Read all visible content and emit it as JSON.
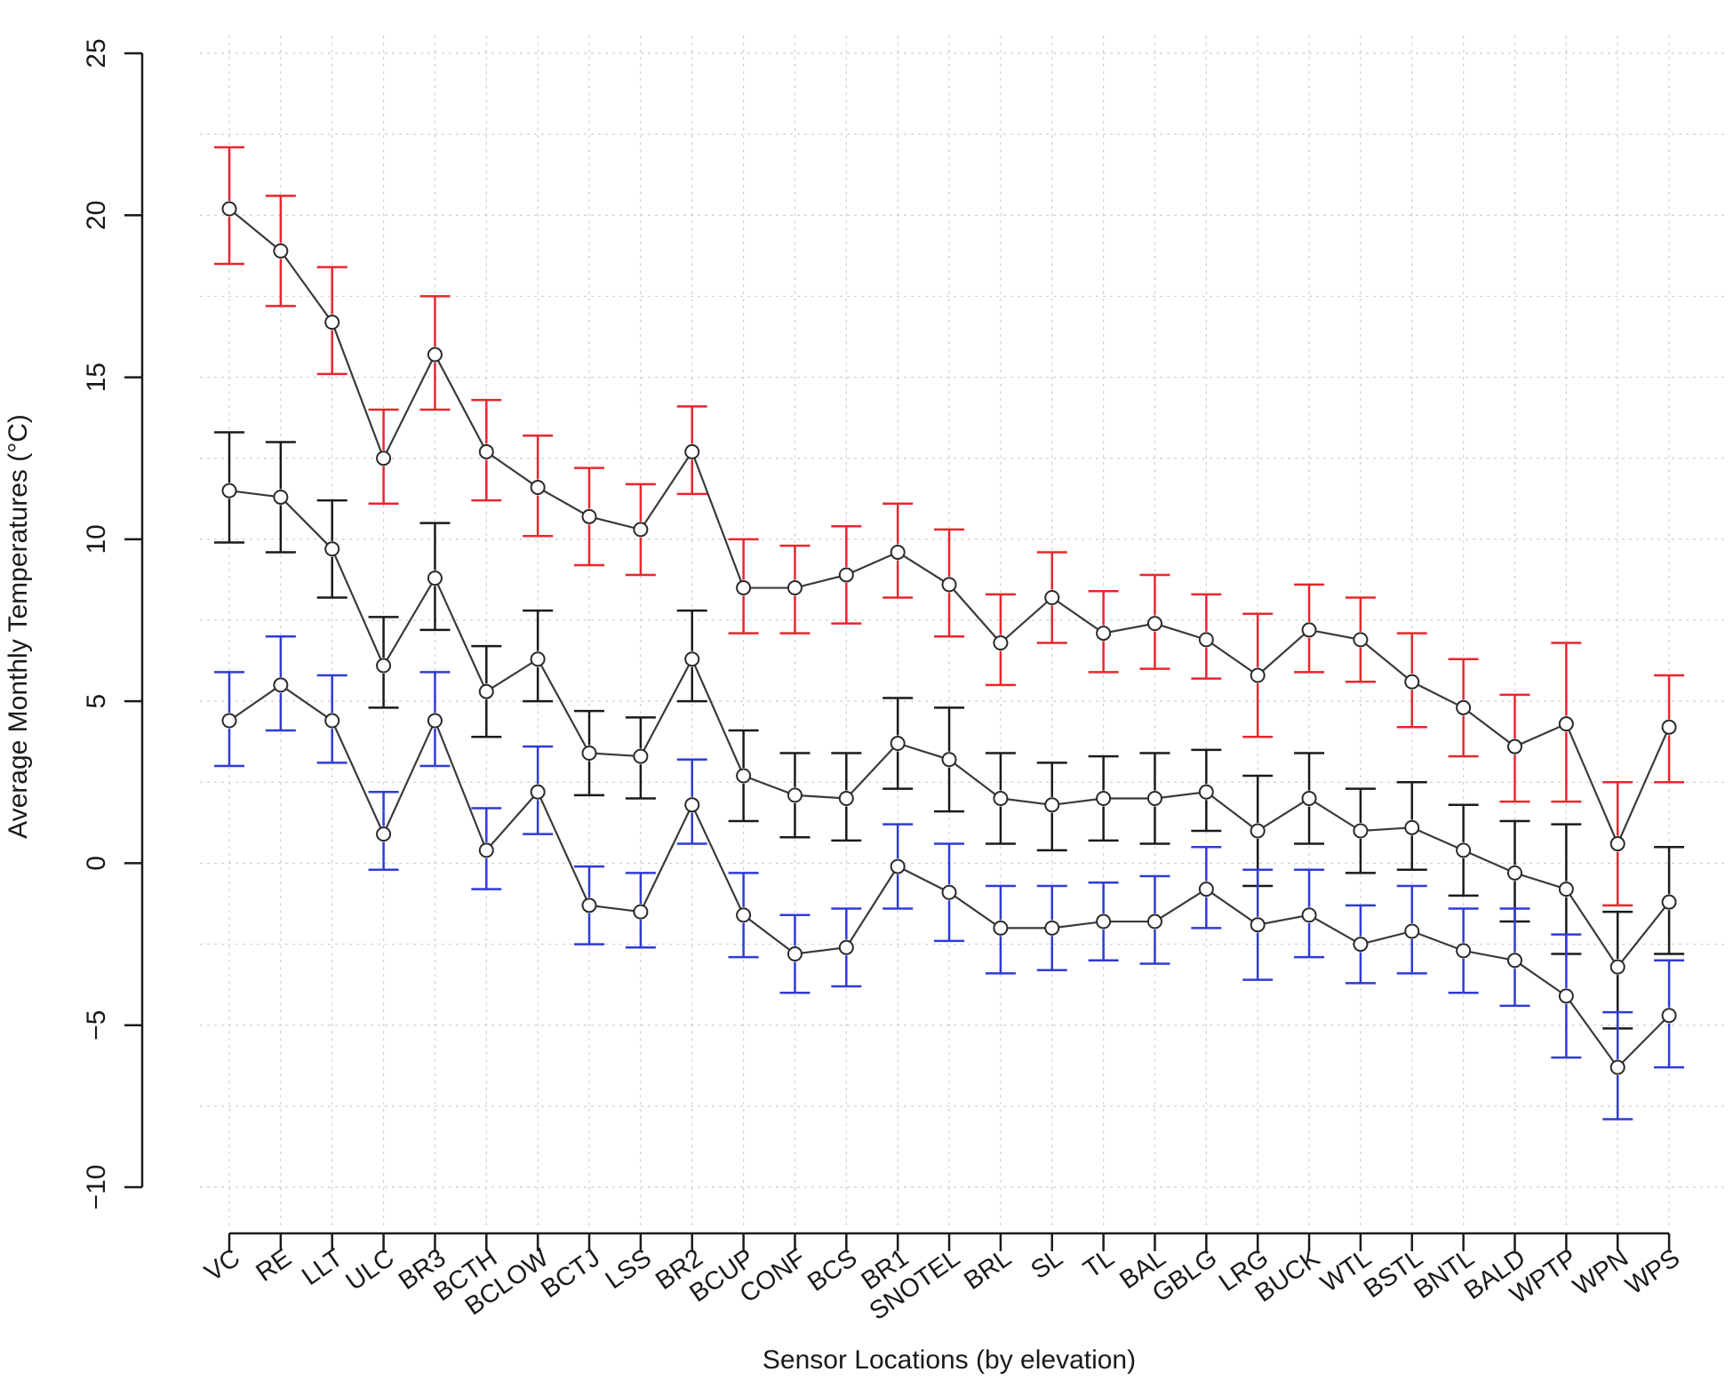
{
  "chart_data": {
    "type": "line",
    "title": "",
    "xlabel": "Sensor Locations (by elevation)",
    "ylabel": "Average Monthly Temperatures (°C)",
    "ylim": [
      -10,
      25
    ],
    "yticks": [
      -10,
      -5,
      0,
      5,
      10,
      15,
      20,
      25
    ],
    "grid": true,
    "categories": [
      "VC",
      "RE",
      "LLT",
      "ULC",
      "BR3",
      "BCTH",
      "BCLOW",
      "BCTJ",
      "LSS",
      "BR2",
      "BCUP",
      "CONF",
      "BCS",
      "BR1",
      "SNOTEL",
      "BRL",
      "SL",
      "TL",
      "BAL",
      "GBLG",
      "LRG",
      "BUCK",
      "WTL",
      "BSTL",
      "BNTL",
      "BALD",
      "WPTP",
      "WPN",
      "WPS"
    ],
    "series": [
      {
        "color": "#e8262c",
        "values": [
          20.2,
          18.9,
          16.7,
          12.5,
          15.7,
          12.7,
          11.6,
          10.7,
          10.3,
          12.7,
          8.5,
          8.5,
          8.9,
          9.6,
          8.6,
          6.8,
          8.2,
          7.1,
          7.4,
          6.9,
          5.8,
          7.2,
          6.9,
          5.6,
          4.8,
          3.6,
          4.3,
          0.6,
          4.2
        ],
        "upper": [
          22.1,
          20.6,
          18.4,
          14.0,
          17.5,
          14.3,
          13.2,
          12.2,
          11.7,
          14.1,
          10.0,
          9.8,
          10.4,
          11.1,
          10.3,
          8.3,
          9.6,
          8.4,
          8.9,
          8.3,
          7.7,
          8.6,
          8.2,
          7.1,
          6.3,
          5.2,
          6.8,
          2.5,
          5.8
        ],
        "lower": [
          18.5,
          17.2,
          15.1,
          11.1,
          14.0,
          11.2,
          10.1,
          9.2,
          8.9,
          11.4,
          7.1,
          7.1,
          7.4,
          8.2,
          7.0,
          5.5,
          6.8,
          5.9,
          6.0,
          5.7,
          3.9,
          5.9,
          5.6,
          4.2,
          3.3,
          1.9,
          1.9,
          -1.3,
          2.5
        ]
      },
      {
        "color": "#1a1a1a",
        "values": [
          11.5,
          11.3,
          9.7,
          6.1,
          8.8,
          5.3,
          6.3,
          3.4,
          3.3,
          6.3,
          2.7,
          2.1,
          2.0,
          3.7,
          3.2,
          2.0,
          1.8,
          2.0,
          2.0,
          2.2,
          1.0,
          2.0,
          1.0,
          1.1,
          0.4,
          -0.3,
          -0.8,
          -3.2,
          -1.2
        ],
        "upper": [
          13.3,
          13.0,
          11.2,
          7.6,
          10.5,
          6.7,
          7.8,
          4.7,
          4.5,
          7.8,
          4.1,
          3.4,
          3.4,
          5.1,
          4.8,
          3.4,
          3.1,
          3.3,
          3.4,
          3.5,
          2.7,
          3.4,
          2.3,
          2.5,
          1.8,
          1.3,
          1.2,
          -1.5,
          0.5
        ],
        "lower": [
          9.9,
          9.6,
          8.2,
          4.8,
          7.2,
          3.9,
          5.0,
          2.1,
          2.0,
          5.0,
          1.3,
          0.8,
          0.7,
          2.3,
          1.6,
          0.6,
          0.4,
          0.7,
          0.6,
          1.0,
          -0.7,
          0.6,
          -0.3,
          -0.2,
          -1.0,
          -1.8,
          -2.8,
          -5.1,
          -2.8
        ]
      },
      {
        "color": "#2f3bd6",
        "values": [
          4.4,
          5.5,
          4.4,
          0.9,
          4.4,
          0.4,
          2.2,
          -1.3,
          -1.5,
          1.8,
          -1.6,
          -2.8,
          -2.6,
          -0.1,
          -0.9,
          -2.0,
          -2.0,
          -1.8,
          -1.8,
          -0.8,
          -1.9,
          -1.6,
          -2.5,
          -2.1,
          -2.7,
          -3.0,
          -4.1,
          -6.3,
          -4.7
        ],
        "upper": [
          5.9,
          7.0,
          5.8,
          2.2,
          5.9,
          1.7,
          3.6,
          -0.1,
          -0.3,
          3.2,
          -0.3,
          -1.6,
          -1.4,
          1.2,
          0.6,
          -0.7,
          -0.7,
          -0.6,
          -0.4,
          0.5,
          -0.2,
          -0.2,
          -1.3,
          -0.7,
          -1.4,
          -1.4,
          -2.2,
          -4.6,
          -3.0
        ],
        "lower": [
          3.0,
          4.1,
          3.1,
          -0.2,
          3.0,
          -0.8,
          0.9,
          -2.5,
          -2.6,
          0.6,
          -2.9,
          -4.0,
          -3.8,
          -1.4,
          -2.4,
          -3.4,
          -3.3,
          -3.0,
          -3.1,
          -2.0,
          -3.6,
          -2.9,
          -3.7,
          -3.4,
          -4.0,
          -4.4,
          -6.0,
          -7.9,
          -6.3
        ]
      }
    ]
  }
}
